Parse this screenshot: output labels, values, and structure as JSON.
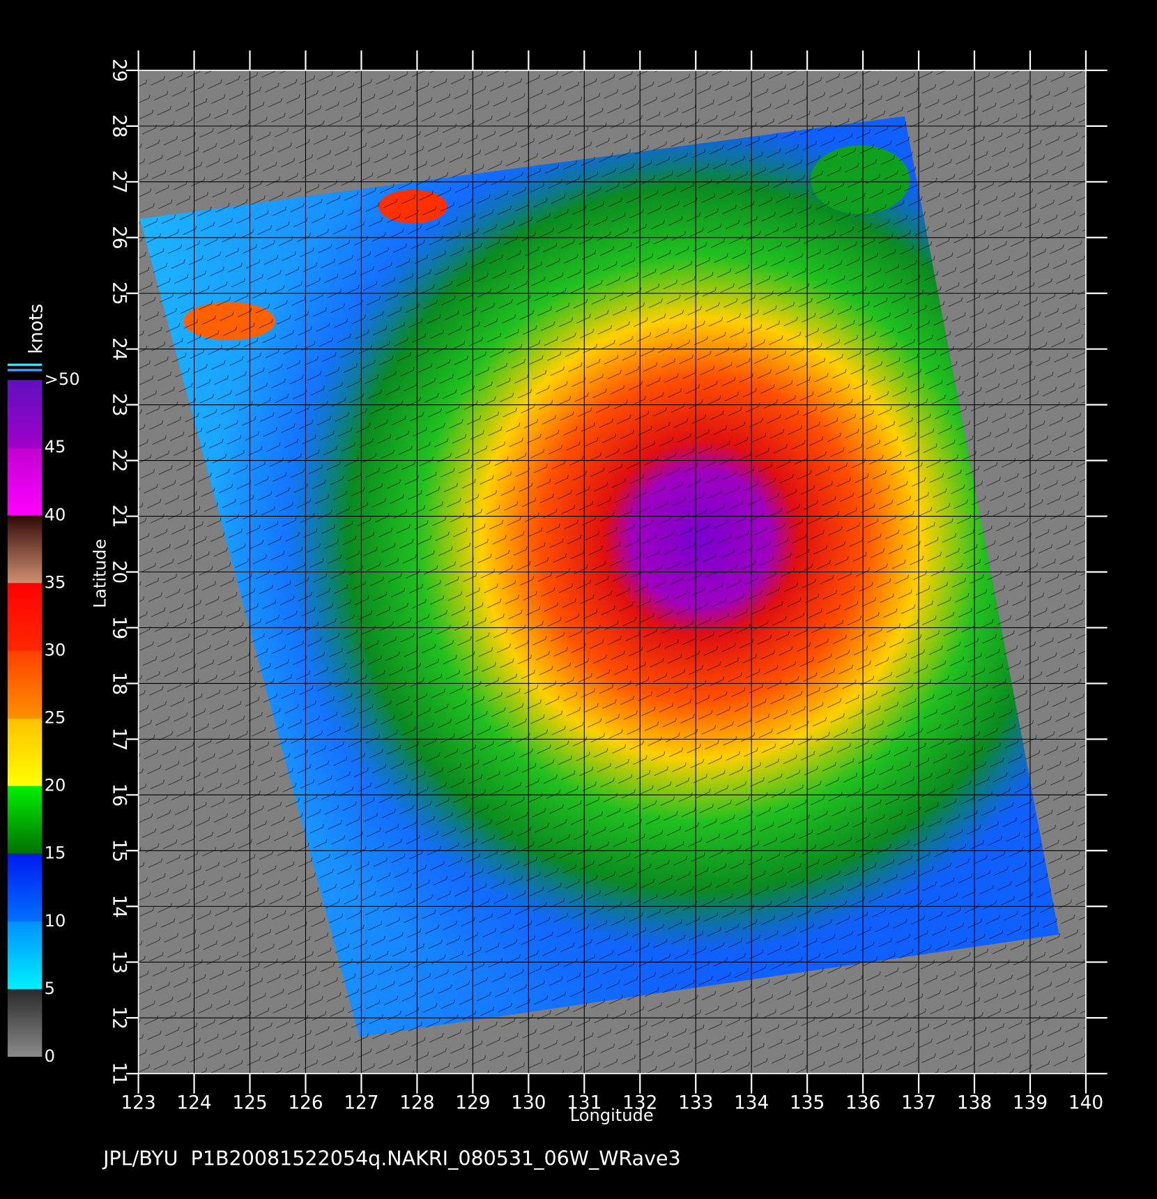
{
  "footer": "JPL/BYU  P1B20081522054q.NAKRI_080531_06W_WRave3",
  "map": {
    "xlabel": "Longitude",
    "ylabel": "Latitude",
    "xlim": [
      123,
      140
    ],
    "xticks": [
      123,
      124,
      125,
      126,
      127,
      128,
      129,
      130,
      131,
      132,
      133,
      134,
      135,
      136,
      137,
      138,
      139,
      140
    ],
    "ylim": [
      11,
      29
    ],
    "yticks": [
      11,
      12,
      13,
      14,
      15,
      16,
      17,
      18,
      19,
      20,
      21,
      22,
      23,
      24,
      25,
      26,
      27,
      28,
      29
    ]
  },
  "colorbar": {
    "title": "knots",
    "ticks": [
      0,
      5,
      10,
      15,
      20,
      25,
      30,
      35,
      40,
      45,
      {
        "value": 50,
        "label": ">50"
      }
    ],
    "colors": [
      [
        "#8a8a8a",
        "#2a2a2a"
      ],
      [
        "#00f0ff",
        "#0090ff"
      ],
      [
        "#0070ff",
        "#0018f0"
      ],
      [
        "#007000",
        "#00f000"
      ],
      [
        "#ffff00",
        "#ffc000"
      ],
      [
        "#ff9000",
        "#ff4000"
      ],
      [
        "#ff2800",
        "#ff0000"
      ],
      [
        "#d09070",
        "#300808"
      ],
      [
        "#ff00ff",
        "#c000d0"
      ],
      [
        "#a000c8",
        "#6010c0"
      ]
    ]
  }
}
